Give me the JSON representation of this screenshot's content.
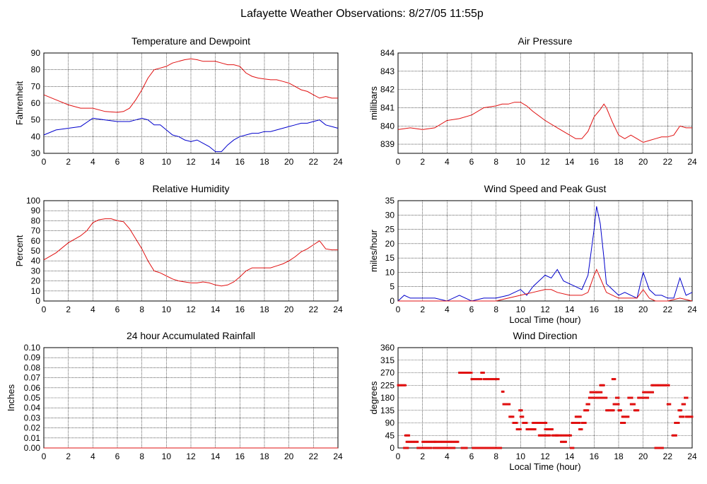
{
  "page": {
    "title": "Lafayette Weather Observations: 8/27/05 11:55p",
    "colors": {
      "primary": "#e01010",
      "secondary": "#0000cc",
      "grid": "#000000"
    }
  },
  "chart_data": [
    {
      "id": "temp",
      "type": "line",
      "title": "Temperature and Dewpoint",
      "xlabel": "",
      "ylabel": "Fahrenheit",
      "xlim": [
        0,
        24
      ],
      "ylim": [
        30,
        90
      ],
      "xticks": [
        0,
        2,
        4,
        6,
        8,
        10,
        12,
        14,
        16,
        18,
        20,
        22,
        24
      ],
      "yticks": [
        30,
        40,
        50,
        60,
        70,
        80,
        90
      ],
      "series": [
        {
          "color": "#e01010",
          "x": [
            0,
            1,
            2,
            3,
            4,
            5,
            6,
            6.5,
            7,
            7.5,
            8,
            8.5,
            9,
            9.5,
            10,
            10.5,
            11,
            11.5,
            12,
            12.5,
            13,
            13.5,
            14,
            14.5,
            15,
            15.5,
            16,
            16.5,
            17,
            17.5,
            18,
            18.5,
            19,
            19.5,
            20,
            20.5,
            21,
            21.5,
            22,
            22.5,
            23,
            23.5,
            24
          ],
          "y": [
            65,
            62,
            59,
            57,
            57,
            55,
            54.5,
            55,
            57,
            62,
            68,
            75,
            80,
            81,
            82,
            84,
            85,
            86,
            86.5,
            86,
            85,
            85,
            85,
            84,
            83,
            83,
            82,
            78,
            76,
            75,
            74.5,
            74,
            74,
            73,
            72,
            70,
            68,
            67,
            65,
            63,
            64,
            63,
            63
          ]
        },
        {
          "color": "#0000cc",
          "x": [
            0,
            1,
            2,
            3,
            4,
            5,
            6,
            6.5,
            7,
            7.5,
            8,
            8.5,
            9,
            9.5,
            10,
            10.5,
            11,
            11.5,
            12,
            12.5,
            13,
            13.5,
            14,
            14.5,
            15,
            15.5,
            16,
            16.5,
            17,
            17.5,
            18,
            18.5,
            19,
            19.5,
            20,
            20.5,
            21,
            21.5,
            22,
            22.5,
            23,
            23.5,
            24
          ],
          "y": [
            41,
            44,
            45,
            46,
            51,
            50,
            49,
            49,
            49,
            50,
            51,
            50,
            47,
            47,
            44,
            41,
            40,
            38,
            37,
            38,
            36,
            34,
            31,
            31,
            35,
            38,
            40,
            41,
            42,
            42,
            43,
            43,
            44,
            45,
            46,
            47,
            48,
            48,
            49,
            50,
            47,
            46,
            45
          ]
        }
      ]
    },
    {
      "id": "pressure",
      "type": "line",
      "title": "Air Pressure",
      "xlabel": "",
      "ylabel": "millibars",
      "xlim": [
        0,
        24
      ],
      "ylim": [
        838.5,
        844
      ],
      "xticks": [
        0,
        2,
        4,
        6,
        8,
        10,
        12,
        14,
        16,
        18,
        20,
        22,
        24
      ],
      "yticks": [
        839,
        840,
        841,
        842,
        843,
        844
      ],
      "series": [
        {
          "color": "#e01010",
          "x": [
            0,
            1,
            2,
            3,
            4,
            5,
            6,
            7,
            8,
            8.5,
            9,
            9.5,
            10,
            10.5,
            11,
            12,
            13,
            14,
            14.5,
            15,
            15.5,
            16,
            16.5,
            16.8,
            17,
            17.5,
            18,
            18.5,
            19,
            19.5,
            20,
            20.5,
            21,
            21.5,
            22,
            22.5,
            23,
            23.5,
            24
          ],
          "y": [
            839.8,
            839.9,
            839.8,
            839.9,
            840.3,
            840.4,
            840.6,
            841.0,
            841.1,
            841.2,
            841.2,
            841.3,
            841.3,
            841.1,
            840.8,
            840.3,
            839.9,
            839.5,
            839.3,
            839.3,
            839.7,
            840.5,
            840.9,
            841.2,
            841.0,
            840.2,
            839.5,
            839.3,
            839.5,
            839.3,
            839.1,
            839.2,
            839.3,
            839.4,
            839.4,
            839.5,
            840.0,
            839.9,
            839.9
          ]
        }
      ]
    },
    {
      "id": "humidity",
      "type": "line",
      "title": "Relative Humidity",
      "xlabel": "",
      "ylabel": "Percent",
      "xlim": [
        0,
        24
      ],
      "ylim": [
        0,
        100
      ],
      "xticks": [
        0,
        2,
        4,
        6,
        8,
        10,
        12,
        14,
        16,
        18,
        20,
        22,
        24
      ],
      "yticks": [
        0,
        10,
        20,
        30,
        40,
        50,
        60,
        70,
        80,
        90,
        100
      ],
      "series": [
        {
          "color": "#e01010",
          "x": [
            0,
            1,
            2,
            3,
            3.5,
            4,
            4.5,
            5,
            5.5,
            6,
            6.5,
            7,
            7.5,
            8,
            8.5,
            9,
            9.5,
            10,
            10.5,
            11,
            11.5,
            12,
            12.5,
            13,
            13.5,
            14,
            14.5,
            15,
            15.5,
            16,
            16.5,
            17,
            17.5,
            18,
            18.5,
            19,
            19.5,
            20,
            20.5,
            21,
            21.5,
            22,
            22.5,
            23,
            23.5,
            24
          ],
          "y": [
            41,
            48,
            58,
            65,
            70,
            78,
            81,
            82,
            82,
            80,
            79,
            72,
            62,
            52,
            40,
            30,
            28,
            25,
            22,
            20,
            19,
            18,
            18,
            19,
            18,
            16,
            15,
            16,
            19,
            24,
            30,
            33,
            33,
            33,
            33,
            35,
            37,
            40,
            44,
            49,
            52,
            56,
            60,
            52,
            51,
            51
          ]
        }
      ]
    },
    {
      "id": "wind",
      "type": "line",
      "title": "Wind Speed and Peak Gust",
      "xlabel": "Local Time (hour)",
      "ylabel": "miles/hour",
      "xlim": [
        0,
        24
      ],
      "ylim": [
        0,
        35
      ],
      "xticks": [
        0,
        2,
        4,
        6,
        8,
        10,
        12,
        14,
        16,
        18,
        20,
        22,
        24
      ],
      "yticks": [
        0,
        5,
        10,
        15,
        20,
        25,
        30,
        35
      ],
      "series": [
        {
          "color": "#0000cc",
          "x": [
            0,
            0.5,
            1,
            2,
            3,
            4,
            5,
            5.5,
            6,
            7,
            8,
            9,
            9.5,
            10,
            10.5,
            11,
            11.5,
            12,
            12.5,
            13,
            13.5,
            14,
            14.5,
            15,
            15.5,
            16,
            16.2,
            16.5,
            16.8,
            17,
            17.5,
            18,
            18.5,
            19,
            19.5,
            20,
            20.5,
            21,
            21.5,
            22,
            22.5,
            23,
            23.5,
            24
          ],
          "y": [
            0,
            2,
            1,
            1,
            1,
            0,
            2,
            1,
            0,
            1,
            1,
            2,
            3,
            4,
            2,
            5,
            7,
            9,
            8,
            11,
            7,
            6,
            5,
            4,
            9,
            25,
            33,
            27,
            15,
            6,
            4,
            2,
            3,
            2,
            1,
            10,
            4,
            2,
            2,
            1,
            1,
            8,
            2,
            3
          ]
        },
        {
          "color": "#e01010",
          "x": [
            0,
            1,
            2,
            3,
            4,
            5,
            6,
            7,
            8,
            9,
            10,
            11,
            12,
            12.5,
            13,
            14,
            15,
            15.5,
            16,
            16.2,
            16.5,
            17,
            17.5,
            18,
            19,
            19.5,
            20,
            20.5,
            21,
            22,
            23,
            24
          ],
          "y": [
            0,
            0,
            0,
            0,
            0,
            0,
            0,
            0,
            0,
            1,
            2,
            3,
            4,
            4,
            3,
            2,
            2,
            3,
            9,
            11,
            8,
            3,
            2,
            1,
            1,
            1,
            4,
            1,
            0,
            0,
            1,
            0
          ]
        }
      ]
    },
    {
      "id": "rain",
      "type": "line",
      "title": "24 hour Accumulated Rainfall",
      "xlabel": "",
      "ylabel": "Inches",
      "xlim": [
        0,
        24
      ],
      "ylim": [
        0,
        0.1
      ],
      "xticks": [
        0,
        2,
        4,
        6,
        8,
        10,
        12,
        14,
        16,
        18,
        20,
        22,
        24
      ],
      "yticks": [
        "0.00",
        "0.01",
        "0.02",
        "0.03",
        "0.04",
        "0.05",
        "0.06",
        "0.07",
        "0.08",
        "0.09",
        "0.10"
      ],
      "series": [
        {
          "color": "#e01010",
          "x": [
            0,
            24
          ],
          "y": [
            0,
            0
          ]
        }
      ]
    },
    {
      "id": "direction",
      "type": "scatter",
      "title": "Wind Direction",
      "xlabel": "Local Time (hour)",
      "ylabel": "degrees",
      "xlim": [
        0,
        24
      ],
      "ylim": [
        0,
        360
      ],
      "xticks": [
        0,
        2,
        4,
        6,
        8,
        10,
        12,
        14,
        16,
        18,
        20,
        22,
        24
      ],
      "yticks": [
        0,
        45,
        90,
        135,
        180,
        225,
        270,
        315,
        360
      ],
      "series": [
        {
          "color": "#e01010",
          "runs": [
            [
              0,
              0.6,
              225
            ],
            [
              0.5,
              0.8,
              0
            ],
            [
              0.6,
              0.9,
              45
            ],
            [
              0.7,
              1.6,
              22
            ],
            [
              1.6,
              2.0,
              0
            ],
            [
              2.0,
              2.3,
              22
            ],
            [
              2.1,
              2.7,
              0
            ],
            [
              2.4,
              3.0,
              22
            ],
            [
              2.9,
              3.4,
              0
            ],
            [
              3.0,
              4.9,
              22
            ],
            [
              3.2,
              4.6,
              0
            ],
            [
              5.0,
              6.0,
              270
            ],
            [
              5.2,
              5.6,
              0
            ],
            [
              6.0,
              6.8,
              247
            ],
            [
              6.1,
              7.4,
              0
            ],
            [
              6.8,
              7.0,
              270
            ],
            [
              7.0,
              8.2,
              247
            ],
            [
              7.4,
              8.4,
              0
            ],
            [
              8.5,
              8.6,
              202
            ],
            [
              8.6,
              9.1,
              157
            ],
            [
              9.1,
              9.4,
              112
            ],
            [
              9.4,
              9.7,
              90
            ],
            [
              9.7,
              10.0,
              67
            ],
            [
              10.0,
              10.2,
              112
            ],
            [
              9.9,
              10.1,
              135
            ],
            [
              10.2,
              10.5,
              90
            ],
            [
              10.5,
              11.2,
              67
            ],
            [
              11.0,
              12.1,
              90
            ],
            [
              11.5,
              12.4,
              45
            ],
            [
              12.0,
              12.6,
              67
            ],
            [
              12.6,
              13.0,
              45
            ],
            [
              12.9,
              14.1,
              45
            ],
            [
              13.3,
              13.7,
              22
            ],
            [
              14.1,
              14.3,
              0
            ],
            [
              14.2,
              14.8,
              90
            ],
            [
              14.5,
              14.9,
              112
            ],
            [
              14.8,
              15.0,
              67
            ],
            [
              15.0,
              15.3,
              90
            ],
            [
              15.2,
              15.5,
              135
            ],
            [
              15.4,
              15.6,
              157
            ],
            [
              15.6,
              16.0,
              180
            ],
            [
              15.7,
              16.2,
              200
            ],
            [
              16.0,
              17.0,
              180
            ],
            [
              16.2,
              16.6,
              200
            ],
            [
              16.5,
              16.8,
              225
            ],
            [
              17.0,
              17.6,
              135
            ],
            [
              17.5,
              17.7,
              247
            ],
            [
              17.6,
              18.0,
              157
            ],
            [
              17.8,
              18.0,
              180
            ],
            [
              18.0,
              18.2,
              135
            ],
            [
              18.2,
              18.5,
              90
            ],
            [
              18.3,
              18.8,
              112
            ],
            [
              18.8,
              19.1,
              180
            ],
            [
              19.0,
              19.3,
              157
            ],
            [
              19.3,
              19.6,
              135
            ],
            [
              19.6,
              20.4,
              180
            ],
            [
              20.0,
              20.8,
              200
            ],
            [
              20.7,
              22.1,
              225
            ],
            [
              21.0,
              21.6,
              0
            ],
            [
              22.0,
              22.2,
              157
            ],
            [
              22.4,
              22.7,
              45
            ],
            [
              22.6,
              22.9,
              90
            ],
            [
              22.9,
              23.1,
              135
            ],
            [
              23.0,
              23.3,
              112
            ],
            [
              23.2,
              23.4,
              157
            ],
            [
              23.4,
              23.6,
              180
            ],
            [
              23.5,
              24.0,
              112
            ]
          ]
        }
      ]
    }
  ]
}
